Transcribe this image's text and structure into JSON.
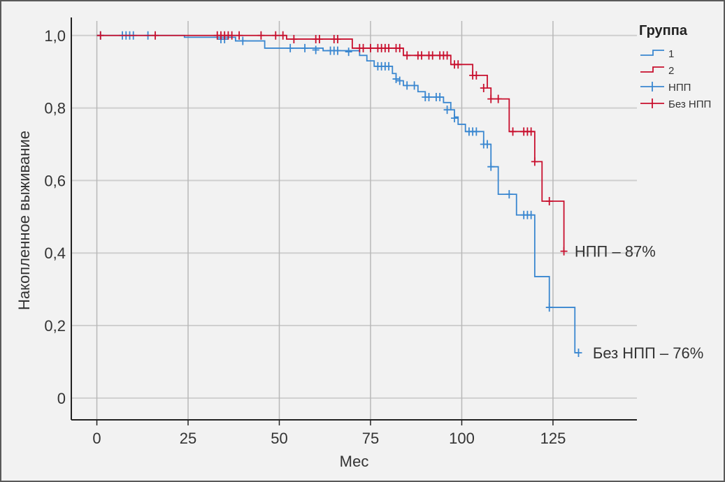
{
  "chart_data": {
    "type": "line",
    "subtype": "kaplan-meier step",
    "xlabel": "Мес",
    "ylabel": "Накопленное выживание",
    "xlim": [
      -7,
      148
    ],
    "ylim": [
      -0.06,
      1.04
    ],
    "x_ticks": [
      0,
      25,
      50,
      75,
      100,
      125
    ],
    "x_tick_labels": [
      "0",
      "25",
      "50",
      "75",
      "100",
      "125"
    ],
    "y_ticks": [
      0,
      0.2,
      0.4,
      0.6,
      0.8,
      1.0
    ],
    "y_tick_labels": [
      "0",
      "0,2",
      "0,4",
      "0,6",
      "0,8",
      "1,0"
    ],
    "grid": true,
    "legend": {
      "title": "Группа",
      "placement": "top-right",
      "entries": [
        "1",
        "2",
        "НПП",
        "Без НПП"
      ]
    },
    "series": [
      {
        "name": "1",
        "color": "#3a87d0",
        "steps": [
          [
            0,
            1.0
          ],
          [
            24,
            0.995
          ],
          [
            38,
            0.985
          ],
          [
            46,
            0.965
          ],
          [
            62,
            0.958
          ],
          [
            72,
            0.945
          ],
          [
            74,
            0.93
          ],
          [
            76,
            0.915
          ],
          [
            81,
            0.895
          ],
          [
            82,
            0.875
          ],
          [
            84,
            0.862
          ],
          [
            88,
            0.845
          ],
          [
            90,
            0.83
          ],
          [
            95,
            0.815
          ],
          [
            97,
            0.795
          ],
          [
            98,
            0.775
          ],
          [
            99,
            0.755
          ],
          [
            101,
            0.735
          ],
          [
            106,
            0.7
          ],
          [
            108,
            0.638
          ],
          [
            110,
            0.562
          ],
          [
            115,
            0.505
          ],
          [
            120,
            0.335
          ],
          [
            124,
            0.25
          ],
          [
            131,
            0.125
          ],
          [
            132,
            0.125
          ]
        ],
        "censored": [
          [
            1,
            1.0
          ],
          [
            7,
            1.0
          ],
          [
            8,
            1.0
          ],
          [
            9,
            1.0
          ],
          [
            10,
            1.0
          ],
          [
            14,
            1.0
          ],
          [
            34,
            0.99
          ],
          [
            35,
            0.99
          ],
          [
            40,
            0.985
          ],
          [
            53,
            0.965
          ],
          [
            57,
            0.965
          ],
          [
            60,
            0.96
          ],
          [
            64,
            0.958
          ],
          [
            65,
            0.958
          ],
          [
            66,
            0.958
          ],
          [
            69,
            0.955
          ],
          [
            77,
            0.915
          ],
          [
            78,
            0.915
          ],
          [
            79,
            0.915
          ],
          [
            80,
            0.915
          ],
          [
            82,
            0.88
          ],
          [
            83,
            0.875
          ],
          [
            85,
            0.862
          ],
          [
            87,
            0.862
          ],
          [
            90,
            0.83
          ],
          [
            91,
            0.83
          ],
          [
            93,
            0.83
          ],
          [
            94,
            0.83
          ],
          [
            96,
            0.795
          ],
          [
            98,
            0.772
          ],
          [
            102,
            0.735
          ],
          [
            103,
            0.735
          ],
          [
            104,
            0.735
          ],
          [
            106,
            0.7
          ],
          [
            107,
            0.7
          ],
          [
            108,
            0.638
          ],
          [
            113,
            0.562
          ],
          [
            117,
            0.505
          ],
          [
            118,
            0.505
          ],
          [
            119,
            0.505
          ],
          [
            124,
            0.25
          ],
          [
            132,
            0.125
          ]
        ]
      },
      {
        "name": "2",
        "color": "#c8102e",
        "steps": [
          [
            0,
            1.0
          ],
          [
            52,
            0.99
          ],
          [
            70,
            0.965
          ],
          [
            84,
            0.945
          ],
          [
            97,
            0.92
          ],
          [
            103,
            0.89
          ],
          [
            107,
            0.855
          ],
          [
            108,
            0.825
          ],
          [
            113,
            0.735
          ],
          [
            120,
            0.652
          ],
          [
            122,
            0.543
          ],
          [
            128,
            0.405
          ]
        ],
        "censored": [
          [
            1,
            1.0
          ],
          [
            16,
            1.0
          ],
          [
            33,
            1.0
          ],
          [
            34,
            1.0
          ],
          [
            35,
            1.0
          ],
          [
            36,
            1.0
          ],
          [
            37,
            1.0
          ],
          [
            39,
            1.0
          ],
          [
            45,
            1.0
          ],
          [
            49,
            1.0
          ],
          [
            51,
            1.0
          ],
          [
            54,
            0.99
          ],
          [
            60,
            0.99
          ],
          [
            61,
            0.99
          ],
          [
            65,
            0.99
          ],
          [
            66,
            0.99
          ],
          [
            72,
            0.965
          ],
          [
            73,
            0.965
          ],
          [
            75,
            0.965
          ],
          [
            77,
            0.965
          ],
          [
            78,
            0.965
          ],
          [
            79,
            0.965
          ],
          [
            80,
            0.965
          ],
          [
            82,
            0.965
          ],
          [
            83,
            0.965
          ],
          [
            85,
            0.945
          ],
          [
            88,
            0.945
          ],
          [
            89,
            0.945
          ],
          [
            91,
            0.945
          ],
          [
            92,
            0.945
          ],
          [
            94,
            0.945
          ],
          [
            95,
            0.945
          ],
          [
            96,
            0.945
          ],
          [
            98,
            0.92
          ],
          [
            99,
            0.92
          ],
          [
            103,
            0.89
          ],
          [
            104,
            0.89
          ],
          [
            106,
            0.855
          ],
          [
            108,
            0.825
          ],
          [
            110,
            0.825
          ],
          [
            114,
            0.735
          ],
          [
            117,
            0.735
          ],
          [
            118,
            0.735
          ],
          [
            119,
            0.735
          ],
          [
            120,
            0.652
          ],
          [
            124,
            0.543
          ],
          [
            128,
            0.405
          ]
        ]
      }
    ],
    "annotations": [
      {
        "text": "НПП – 87%",
        "x": 129,
        "y": 0.405
      },
      {
        "text": "Без НПП – 76%",
        "x": 134,
        "y": 0.125
      }
    ]
  }
}
